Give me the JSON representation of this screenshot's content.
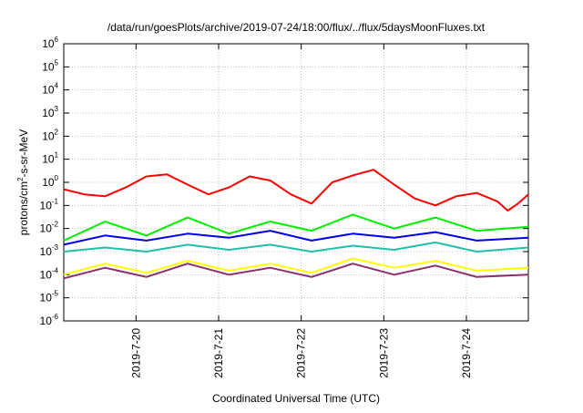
{
  "chart_data": {
    "type": "line",
    "title": "/data/run/goesPlots/archive/2019-07-24/18:00/flux/../flux/5daysMoonFluxes.txt",
    "xlabel": "Coordinated Universal Time (UTC)",
    "ylabel": {
      "pre": "protons/cm",
      "sup": "2",
      "post": "-s-sr-MeV"
    },
    "y_scale": "log",
    "ylim_exp": [
      -6,
      6
    ],
    "y_ticks": [
      {
        "base": "10",
        "exp": "-6"
      },
      {
        "base": "10",
        "exp": "-5"
      },
      {
        "base": "10",
        "exp": "-4"
      },
      {
        "base": "10",
        "exp": "-3"
      },
      {
        "base": "10",
        "exp": "-2"
      },
      {
        "base": "10",
        "exp": "-1"
      },
      {
        "base": "10",
        "exp": "0"
      },
      {
        "base": "10",
        "exp": "1"
      },
      {
        "base": "10",
        "exp": "2"
      },
      {
        "base": "10",
        "exp": "3"
      },
      {
        "base": "10",
        "exp": "4"
      },
      {
        "base": "10",
        "exp": "5"
      },
      {
        "base": "10",
        "exp": "6"
      }
    ],
    "x_range": [
      "2019-07-19 03:00",
      "2019-07-24 18:00"
    ],
    "x_ticks": [
      "2019-7-20",
      "2019-7-21",
      "2019-7-22",
      "2019-7-23",
      "2019-7-24"
    ],
    "grid": true,
    "legend": "none",
    "series": [
      {
        "color": "#ff0000",
        "points": [
          [
            "2019-07-19 03:00",
            0.5
          ],
          [
            "2019-07-19 09:00",
            0.3
          ],
          [
            "2019-07-19 15:00",
            0.25
          ],
          [
            "2019-07-19 21:00",
            0.6
          ],
          [
            "2019-07-20 03:00",
            1.8
          ],
          [
            "2019-07-20 09:00",
            2.2
          ],
          [
            "2019-07-20 15:00",
            0.8
          ],
          [
            "2019-07-20 21:00",
            0.3
          ],
          [
            "2019-07-21 03:00",
            0.6
          ],
          [
            "2019-07-21 09:00",
            1.8
          ],
          [
            "2019-07-21 15:00",
            1.2
          ],
          [
            "2019-07-21 21:00",
            0.3
          ],
          [
            "2019-07-22 03:00",
            0.12
          ],
          [
            "2019-07-22 09:00",
            1.0
          ],
          [
            "2019-07-22 15:00",
            2.0
          ],
          [
            "2019-07-22 21:00",
            3.5
          ],
          [
            "2019-07-23 03:00",
            0.8
          ],
          [
            "2019-07-23 09:00",
            0.2
          ],
          [
            "2019-07-23 15:00",
            0.1
          ],
          [
            "2019-07-23 21:00",
            0.25
          ],
          [
            "2019-07-24 03:00",
            0.35
          ],
          [
            "2019-07-24 09:00",
            0.15
          ],
          [
            "2019-07-24 12:00",
            0.06
          ],
          [
            "2019-07-24 15:00",
            0.12
          ],
          [
            "2019-07-24 18:00",
            0.3
          ]
        ]
      },
      {
        "color": "#00ee00",
        "points": [
          [
            "2019-07-19 03:00",
            0.003
          ],
          [
            "2019-07-19 15:00",
            0.02
          ],
          [
            "2019-07-20 03:00",
            0.005
          ],
          [
            "2019-07-20 15:00",
            0.03
          ],
          [
            "2019-07-21 03:00",
            0.006
          ],
          [
            "2019-07-21 15:00",
            0.02
          ],
          [
            "2019-07-22 03:00",
            0.008
          ],
          [
            "2019-07-22 15:00",
            0.04
          ],
          [
            "2019-07-23 03:00",
            0.01
          ],
          [
            "2019-07-23 15:00",
            0.03
          ],
          [
            "2019-07-24 03:00",
            0.008
          ],
          [
            "2019-07-24 18:00",
            0.012
          ]
        ]
      },
      {
        "color": "#0000ee",
        "points": [
          [
            "2019-07-19 03:00",
            0.002
          ],
          [
            "2019-07-19 15:00",
            0.005
          ],
          [
            "2019-07-20 03:00",
            0.003
          ],
          [
            "2019-07-20 15:00",
            0.006
          ],
          [
            "2019-07-21 03:00",
            0.004
          ],
          [
            "2019-07-21 15:00",
            0.008
          ],
          [
            "2019-07-22 03:00",
            0.003
          ],
          [
            "2019-07-22 15:00",
            0.006
          ],
          [
            "2019-07-23 03:00",
            0.004
          ],
          [
            "2019-07-23 15:00",
            0.007
          ],
          [
            "2019-07-24 03:00",
            0.003
          ],
          [
            "2019-07-24 18:00",
            0.004
          ]
        ]
      },
      {
        "color": "#20c0a8",
        "points": [
          [
            "2019-07-19 03:00",
            0.001
          ],
          [
            "2019-07-19 15:00",
            0.0015
          ],
          [
            "2019-07-20 03:00",
            0.001
          ],
          [
            "2019-07-20 15:00",
            0.002
          ],
          [
            "2019-07-21 03:00",
            0.0012
          ],
          [
            "2019-07-21 15:00",
            0.002
          ],
          [
            "2019-07-22 03:00",
            0.001
          ],
          [
            "2019-07-22 15:00",
            0.0018
          ],
          [
            "2019-07-23 03:00",
            0.0012
          ],
          [
            "2019-07-23 15:00",
            0.0025
          ],
          [
            "2019-07-24 03:00",
            0.001
          ],
          [
            "2019-07-24 18:00",
            0.0015
          ]
        ]
      },
      {
        "color": "#ffff00",
        "points": [
          [
            "2019-07-19 03:00",
            0.0001
          ],
          [
            "2019-07-19 15:00",
            0.0003
          ],
          [
            "2019-07-20 03:00",
            0.00012
          ],
          [
            "2019-07-20 15:00",
            0.0004
          ],
          [
            "2019-07-21 03:00",
            0.00015
          ],
          [
            "2019-07-21 15:00",
            0.0003
          ],
          [
            "2019-07-22 03:00",
            0.00012
          ],
          [
            "2019-07-22 15:00",
            0.0005
          ],
          [
            "2019-07-23 03:00",
            0.0002
          ],
          [
            "2019-07-23 15:00",
            0.0004
          ],
          [
            "2019-07-24 03:00",
            0.00015
          ],
          [
            "2019-07-24 18:00",
            0.0002
          ]
        ]
      },
      {
        "color": "#8b2f6b",
        "points": [
          [
            "2019-07-19 03:00",
            7e-05
          ],
          [
            "2019-07-19 15:00",
            0.0002
          ],
          [
            "2019-07-20 03:00",
            8e-05
          ],
          [
            "2019-07-20 15:00",
            0.0003
          ],
          [
            "2019-07-21 03:00",
            0.0001
          ],
          [
            "2019-07-21 15:00",
            0.0002
          ],
          [
            "2019-07-22 03:00",
            8e-05
          ],
          [
            "2019-07-22 15:00",
            0.0003
          ],
          [
            "2019-07-23 03:00",
            0.0001
          ],
          [
            "2019-07-23 15:00",
            0.00025
          ],
          [
            "2019-07-24 03:00",
            8e-05
          ],
          [
            "2019-07-24 18:00",
            0.0001
          ]
        ]
      }
    ]
  }
}
